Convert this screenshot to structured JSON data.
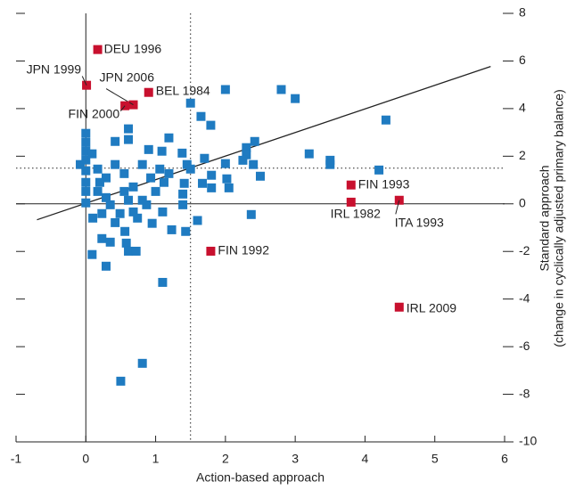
{
  "chart_data": {
    "type": "scatter",
    "x_label": "Action-based approach",
    "y_label": [
      "Standard approach",
      "(change in cyclically adjusted primary balance)"
    ],
    "xlim": [
      -1,
      6
    ],
    "xticks": [
      -1,
      0,
      1,
      2,
      3,
      4,
      5,
      6
    ],
    "ylim": [
      -10,
      8
    ],
    "yticks": [
      -10,
      -8,
      -6,
      -4,
      -2,
      0,
      2,
      4,
      6,
      8
    ],
    "reference_lines": {
      "x": 1.5,
      "y": 1.5
    },
    "fit_line": {
      "x": [
        -0.7,
        5.8
      ],
      "y": [
        -0.67,
        5.77
      ]
    },
    "series": [
      {
        "color": "#1f7bc1",
        "x": [
          2.0,
          2.8,
          3.0,
          4.3,
          3.2,
          3.5,
          3.5,
          4.2,
          2.5,
          2.4,
          2.37,
          2.42,
          2.3,
          2.3,
          2.25,
          2.0,
          1.5,
          1.65,
          1.79,
          0.61,
          0.61,
          0.42,
          1.19,
          1.09,
          0.9,
          1.38,
          1.45,
          1.7,
          1.8,
          1.8,
          1.6,
          1.43,
          1.23,
          1.1,
          0.81,
          0.5,
          0.09,
          0.29,
          0.23,
          0.35,
          0.58,
          0.61,
          0.72,
          0.56,
          0.95,
          1.1,
          1.39,
          1.39,
          1.41,
          1.67,
          1.5,
          2.05,
          2.02,
          0,
          0,
          0,
          0,
          0,
          0,
          0,
          0,
          -0.08,
          0.09,
          0.17,
          0.29,
          0.42,
          0.55,
          0.68,
          0.81,
          0.93,
          0.23,
          0.35,
          0.49,
          0.68,
          0.81,
          0.17,
          0.29,
          0.55,
          0.1,
          0.42,
          1.0,
          1.12,
          1.19,
          1.06,
          0.87,
          0.2,
          0.61,
          0.74
        ],
        "y": [
          4.8,
          4.8,
          4.42,
          3.52,
          2.1,
          1.83,
          1.65,
          1.42,
          1.16,
          1.65,
          -0.45,
          2.62,
          2.36,
          2.06,
          1.83,
          1.69,
          4.23,
          3.67,
          3.3,
          3.15,
          2.7,
          2.62,
          2.77,
          2.21,
          2.28,
          2.13,
          1.65,
          1.91,
          0.67,
          1.2,
          -0.7,
          -1.16,
          -1.09,
          -3.3,
          -6.7,
          -7.45,
          -2.13,
          -2.62,
          -1.46,
          -1.61,
          -1.65,
          -1.99,
          -1.99,
          -1.16,
          -0.82,
          -0.34,
          -0.04,
          0.41,
          0.86,
          0.86,
          1.46,
          0.67,
          1.05,
          2.96,
          2.58,
          2.21,
          1.84,
          1.39,
          0.9,
          0.52,
          0.04,
          1.65,
          2.1,
          1.46,
          1.09,
          1.65,
          1.27,
          0.71,
          1.65,
          1.09,
          -0.41,
          -0.04,
          -0.41,
          -0.34,
          0.15,
          0.52,
          0.26,
          0.52,
          -0.6,
          -0.79,
          0.52,
          0.9,
          1.27,
          1.46,
          -0.04,
          0.9,
          0.15,
          -0.6
        ]
      },
      {
        "color": "#c8102e",
        "labels": [
          "DEU 1996",
          "JPN 1999",
          "JPN 2006",
          "BEL 1984",
          "FIN 2000",
          "FIN 1993",
          "IRL 1982",
          "ITA 1993",
          "FIN 1992",
          "IRL 2009"
        ],
        "x": [
          0.17,
          0.01,
          0.68,
          0.9,
          0.56,
          3.8,
          3.8,
          4.49,
          1.79,
          4.49
        ],
        "y": [
          6.48,
          4.98,
          4.16,
          4.68,
          4.12,
          0.79,
          0.07,
          0.15,
          -1.99,
          -4.34
        ]
      }
    ]
  }
}
